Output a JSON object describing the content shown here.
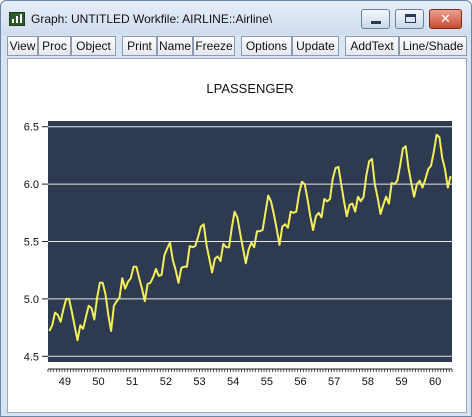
{
  "window": {
    "title": "Graph: UNTITLED   Workfile: AIRLINE::Airline\\",
    "icon": "graph-app-icon",
    "controls": {
      "minimize": "minimize-icon",
      "maximize": "maximize-icon",
      "close": "close-icon"
    }
  },
  "toolbar": {
    "buttons": [
      "View",
      "Proc",
      "Object",
      "Print",
      "Name",
      "Freeze",
      "Options",
      "Update",
      "AddText",
      "Line/Shade"
    ]
  },
  "colors": {
    "plot_background": "#2e3a4f",
    "series_line": "#f2ef5a",
    "gridline": "#e8e8e8"
  },
  "chart_data": {
    "type": "line",
    "title": "LPASSENGER",
    "xlabel": "",
    "ylabel": "",
    "grid": true,
    "legend": "none",
    "ylim": [
      4.45,
      6.55
    ],
    "x_range": [
      1949,
      1961
    ],
    "y_ticks": [
      "4.5",
      "5.0",
      "5.5",
      "6.0",
      "6.5"
    ],
    "x_tick_labels": [
      "49",
      "50",
      "51",
      "52",
      "53",
      "54",
      "55",
      "56",
      "57",
      "58",
      "59",
      "60"
    ],
    "series": [
      {
        "values": [
          4.72,
          4.77,
          4.88,
          4.86,
          4.8,
          4.91,
          5.0,
          5.0,
          4.89,
          4.76,
          4.64,
          4.77,
          4.74,
          4.84,
          4.94,
          4.92,
          4.82,
          5.01,
          5.14,
          5.14,
          5.04,
          4.86,
          4.72,
          4.94,
          4.98,
          5.01,
          5.18,
          5.09,
          5.15,
          5.18,
          5.28,
          5.28,
          5.18,
          5.09,
          4.98,
          5.13,
          5.14,
          5.19,
          5.26,
          5.2,
          5.21,
          5.38,
          5.44,
          5.49,
          5.34,
          5.25,
          5.14,
          5.27,
          5.28,
          5.28,
          5.46,
          5.45,
          5.46,
          5.54,
          5.63,
          5.65,
          5.47,
          5.35,
          5.23,
          5.35,
          5.37,
          5.33,
          5.48,
          5.45,
          5.45,
          5.62,
          5.76,
          5.71,
          5.57,
          5.44,
          5.31,
          5.43,
          5.49,
          5.45,
          5.59,
          5.59,
          5.6,
          5.75,
          5.9,
          5.85,
          5.74,
          5.61,
          5.47,
          5.63,
          5.65,
          5.62,
          5.76,
          5.75,
          5.76,
          5.92,
          6.02,
          6.0,
          5.87,
          5.72,
          5.6,
          5.72,
          5.75,
          5.71,
          5.87,
          5.85,
          5.87,
          6.05,
          6.14,
          6.15,
          6.0,
          5.85,
          5.72,
          5.82,
          5.83,
          5.76,
          5.89,
          5.85,
          5.89,
          6.08,
          6.2,
          6.22,
          6.0,
          5.88,
          5.74,
          5.82,
          5.89,
          5.83,
          6.01,
          6.0,
          6.03,
          6.16,
          6.31,
          6.33,
          6.14,
          6.01,
          5.89,
          6.0,
          6.03,
          5.97,
          6.04,
          6.13,
          6.16,
          6.28,
          6.43,
          6.41,
          6.23,
          6.13,
          5.97,
          6.07
        ]
      }
    ]
  }
}
